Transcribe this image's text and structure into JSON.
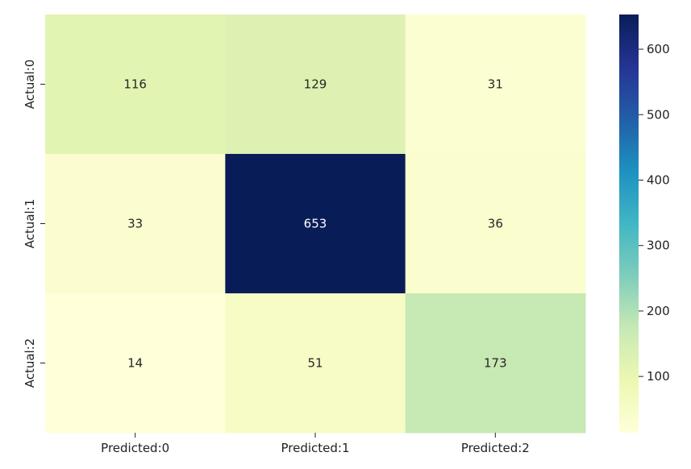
{
  "chart_data": {
    "type": "heatmap",
    "title": "",
    "xlabel": "",
    "ylabel": "",
    "x_categories": [
      "Predicted:0",
      "Predicted:1",
      "Predicted:2"
    ],
    "y_categories": [
      "Actual:0",
      "Actual:1",
      "Actual:2"
    ],
    "values": [
      [
        116,
        129,
        31
      ],
      [
        33,
        653,
        36
      ],
      [
        14,
        51,
        173
      ]
    ],
    "colormap": "YlGnBu",
    "colorbar": {
      "range": [
        14,
        653
      ],
      "ticks": [
        100,
        200,
        300,
        400,
        500,
        600
      ],
      "tick_labels": [
        "100",
        "200",
        "300",
        "400",
        "500",
        "600"
      ]
    },
    "annotated": true,
    "grid": false,
    "legend": "none"
  }
}
